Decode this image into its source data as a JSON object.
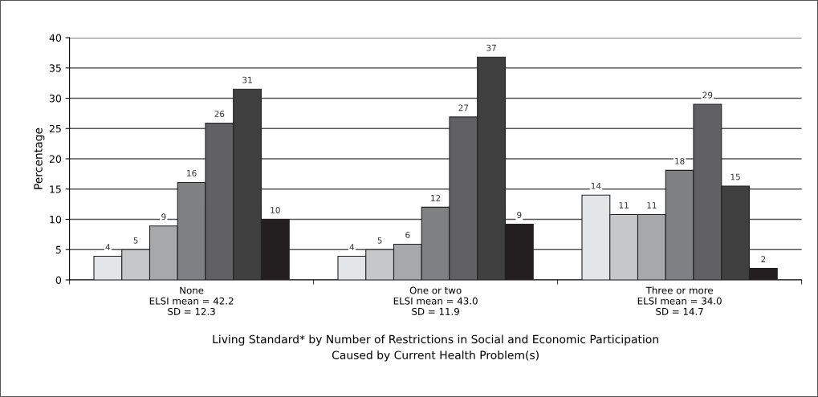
{
  "chart_data": {
    "type": "bar",
    "xlabel": "Living Standard* by Number of Restrictions in Social and Economic Participation\nCaused by Current Health Problem(s)",
    "ylabel": "Percentage",
    "categories": [
      "None\nELSI mean = 42.2\nSD = 12.3",
      "One or two\nELSI mean = 43.0\nSD = 11.9",
      "Three or more\nELSI mean = 34.0\nSD = 14.7"
    ],
    "series": [
      {
        "color": "#e4e5e6",
        "values": [
          3.9,
          3.9,
          14.0
        ],
        "value_labels": [
          "4",
          "4",
          "14"
        ]
      },
      {
        "color": "#c6c7c8",
        "values": [
          5.0,
          5.0,
          10.8
        ],
        "value_labels": [
          "5",
          "5",
          "11"
        ]
      },
      {
        "color": "#a7a8aa",
        "values": [
          8.9,
          5.9,
          10.8
        ],
        "value_labels": [
          "9",
          "6",
          "11"
        ]
      },
      {
        "color": "#7f8083",
        "values": [
          16.1,
          12.0,
          18.1
        ],
        "value_labels": [
          "16",
          "12",
          "18"
        ]
      },
      {
        "color": "#616163",
        "values": [
          25.9,
          26.9,
          29.0
        ],
        "value_labels": [
          "26",
          "27",
          "29"
        ]
      },
      {
        "color": "#3f3f40",
        "values": [
          31.5,
          36.8,
          15.5
        ],
        "value_labels": [
          "31",
          "37",
          "15"
        ]
      },
      {
        "color": "#231f20",
        "values": [
          10.0,
          9.2,
          1.9
        ],
        "value_labels": [
          "10",
          "9",
          "2"
        ]
      }
    ],
    "ylim": [
      0,
      40
    ],
    "yticks": [
      0,
      5,
      10,
      15,
      20,
      25,
      30,
      35,
      40
    ],
    "grid": "y"
  }
}
